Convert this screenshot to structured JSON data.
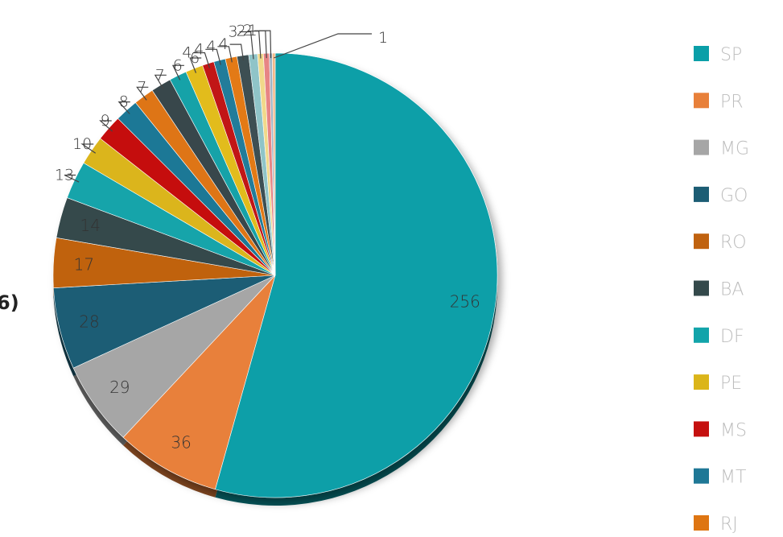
{
  "chart_data": {
    "type": "pie",
    "values": [
      256,
      36,
      29,
      28,
      17,
      14,
      13,
      10,
      9,
      8,
      7,
      7,
      6,
      6,
      4,
      4,
      4,
      4,
      3,
      2,
      2,
      1,
      1
    ],
    "colors": [
      "#0a9fa8",
      "#e8803a",
      "#a6a6a6",
      "#1c5d74",
      "#c0620f",
      "#34494b",
      "#12a4aa",
      "#dbb51a",
      "#c5100f",
      "#1f7896",
      "#de7512",
      "#37474c",
      "#13a2a8",
      "#e2bc1c",
      "#c11212",
      "#207c9a",
      "#e37a14",
      "#3e5052",
      "#8fc4c8",
      "#f1d98a",
      "#e78585",
      "#9fb4c4",
      "#f2b98a"
    ],
    "legend": [
      "SP",
      "PR",
      "MG",
      "GO",
      "RO",
      "BA",
      "DF",
      "PE",
      "MS",
      "MT",
      "RJ"
    ],
    "legend_colors": [
      "#0a9fa8",
      "#e8803a",
      "#a6a6a6",
      "#1c5d74",
      "#c0620f",
      "#34494b",
      "#12a4aa",
      "#dbb51a",
      "#c5100f",
      "#1f7896",
      "#de7512"
    ],
    "legend_position": "right",
    "cut_off_text": "6)"
  }
}
